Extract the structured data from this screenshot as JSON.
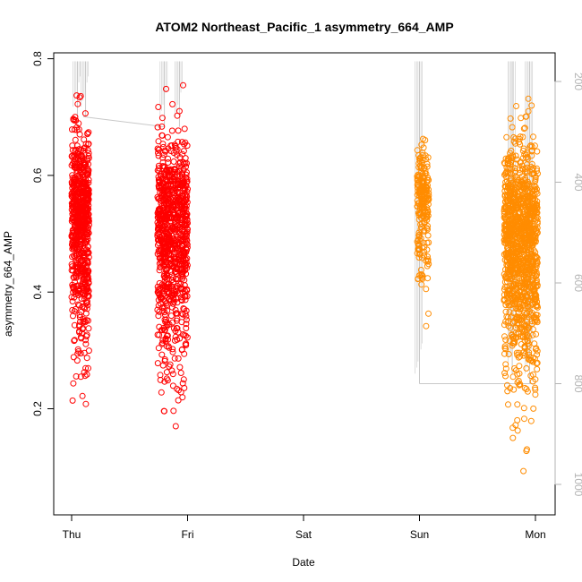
{
  "chart_data": {
    "type": "scatter",
    "title": "ATOM2 Northeast_Pacific_1 asymmetry_664_AMP",
    "xlabel": "Date",
    "ylabel": "asymmetry_664_AMP",
    "xlim": [
      "Thu 00:00",
      "Mon 00:00"
    ],
    "ylim": [
      0.03,
      0.81
    ],
    "y_ticks": [
      "0.2",
      "0.4",
      "0.6",
      "0.8"
    ],
    "x_ticks": [
      "Thu",
      "Fri",
      "Sat",
      "Sun",
      "Mon"
    ],
    "y2_ticks": [
      "200",
      "400",
      "600",
      "800",
      "1000"
    ],
    "y2_reversed": true,
    "y2lim": [
      160,
      1045
    ],
    "grid": false,
    "colors": {
      "series_red": "#ff0000",
      "series_orange": "#ff8c00",
      "depth_line": "#c8c8c8",
      "axis": "#000000",
      "right_axis": "#b3b3b3"
    },
    "series": [
      {
        "color": "red",
        "clusters": [
          {
            "day_start": 0.0,
            "day_end": 0.15,
            "y_min": 0.12,
            "y_max": 0.77,
            "n": 700
          },
          {
            "day_start": 0.74,
            "day_end": 1.0,
            "y_min": 0.08,
            "y_max": 0.77,
            "n": 900
          }
        ]
      },
      {
        "color": "orange",
        "clusters": [
          {
            "day_start": 2.98,
            "day_end": 3.08,
            "y_min": 0.27,
            "y_max": 0.7,
            "n": 220
          },
          {
            "day_start": 3.73,
            "day_end": 4.02,
            "y_min": 0.04,
            "y_max": 0.77,
            "n": 1200
          }
        ]
      }
    ],
    "depth_trace": {
      "segments": [
        {
          "day": 0.05,
          "depth_top": 160,
          "depth_bottom": 270
        },
        {
          "day": 0.12,
          "depth_top": 160,
          "depth_bottom": 270
        },
        {
          "day": 0.8,
          "depth_top": 160,
          "depth_bottom": 290
        },
        {
          "day": 0.93,
          "depth_top": 160,
          "depth_bottom": 290
        },
        {
          "day": 3.0,
          "depth_top": 160,
          "depth_bottom": 800
        },
        {
          "day": 3.8,
          "depth_top": 160,
          "depth_bottom": 780
        },
        {
          "day": 3.95,
          "depth_top": 160,
          "depth_bottom": 800
        }
      ],
      "links": [
        {
          "from": [
            0.1,
            270
          ],
          "to": [
            0.8,
            290
          ]
        },
        {
          "from": [
            3.0,
            800
          ],
          "to": [
            4.0,
            800
          ]
        }
      ]
    }
  }
}
